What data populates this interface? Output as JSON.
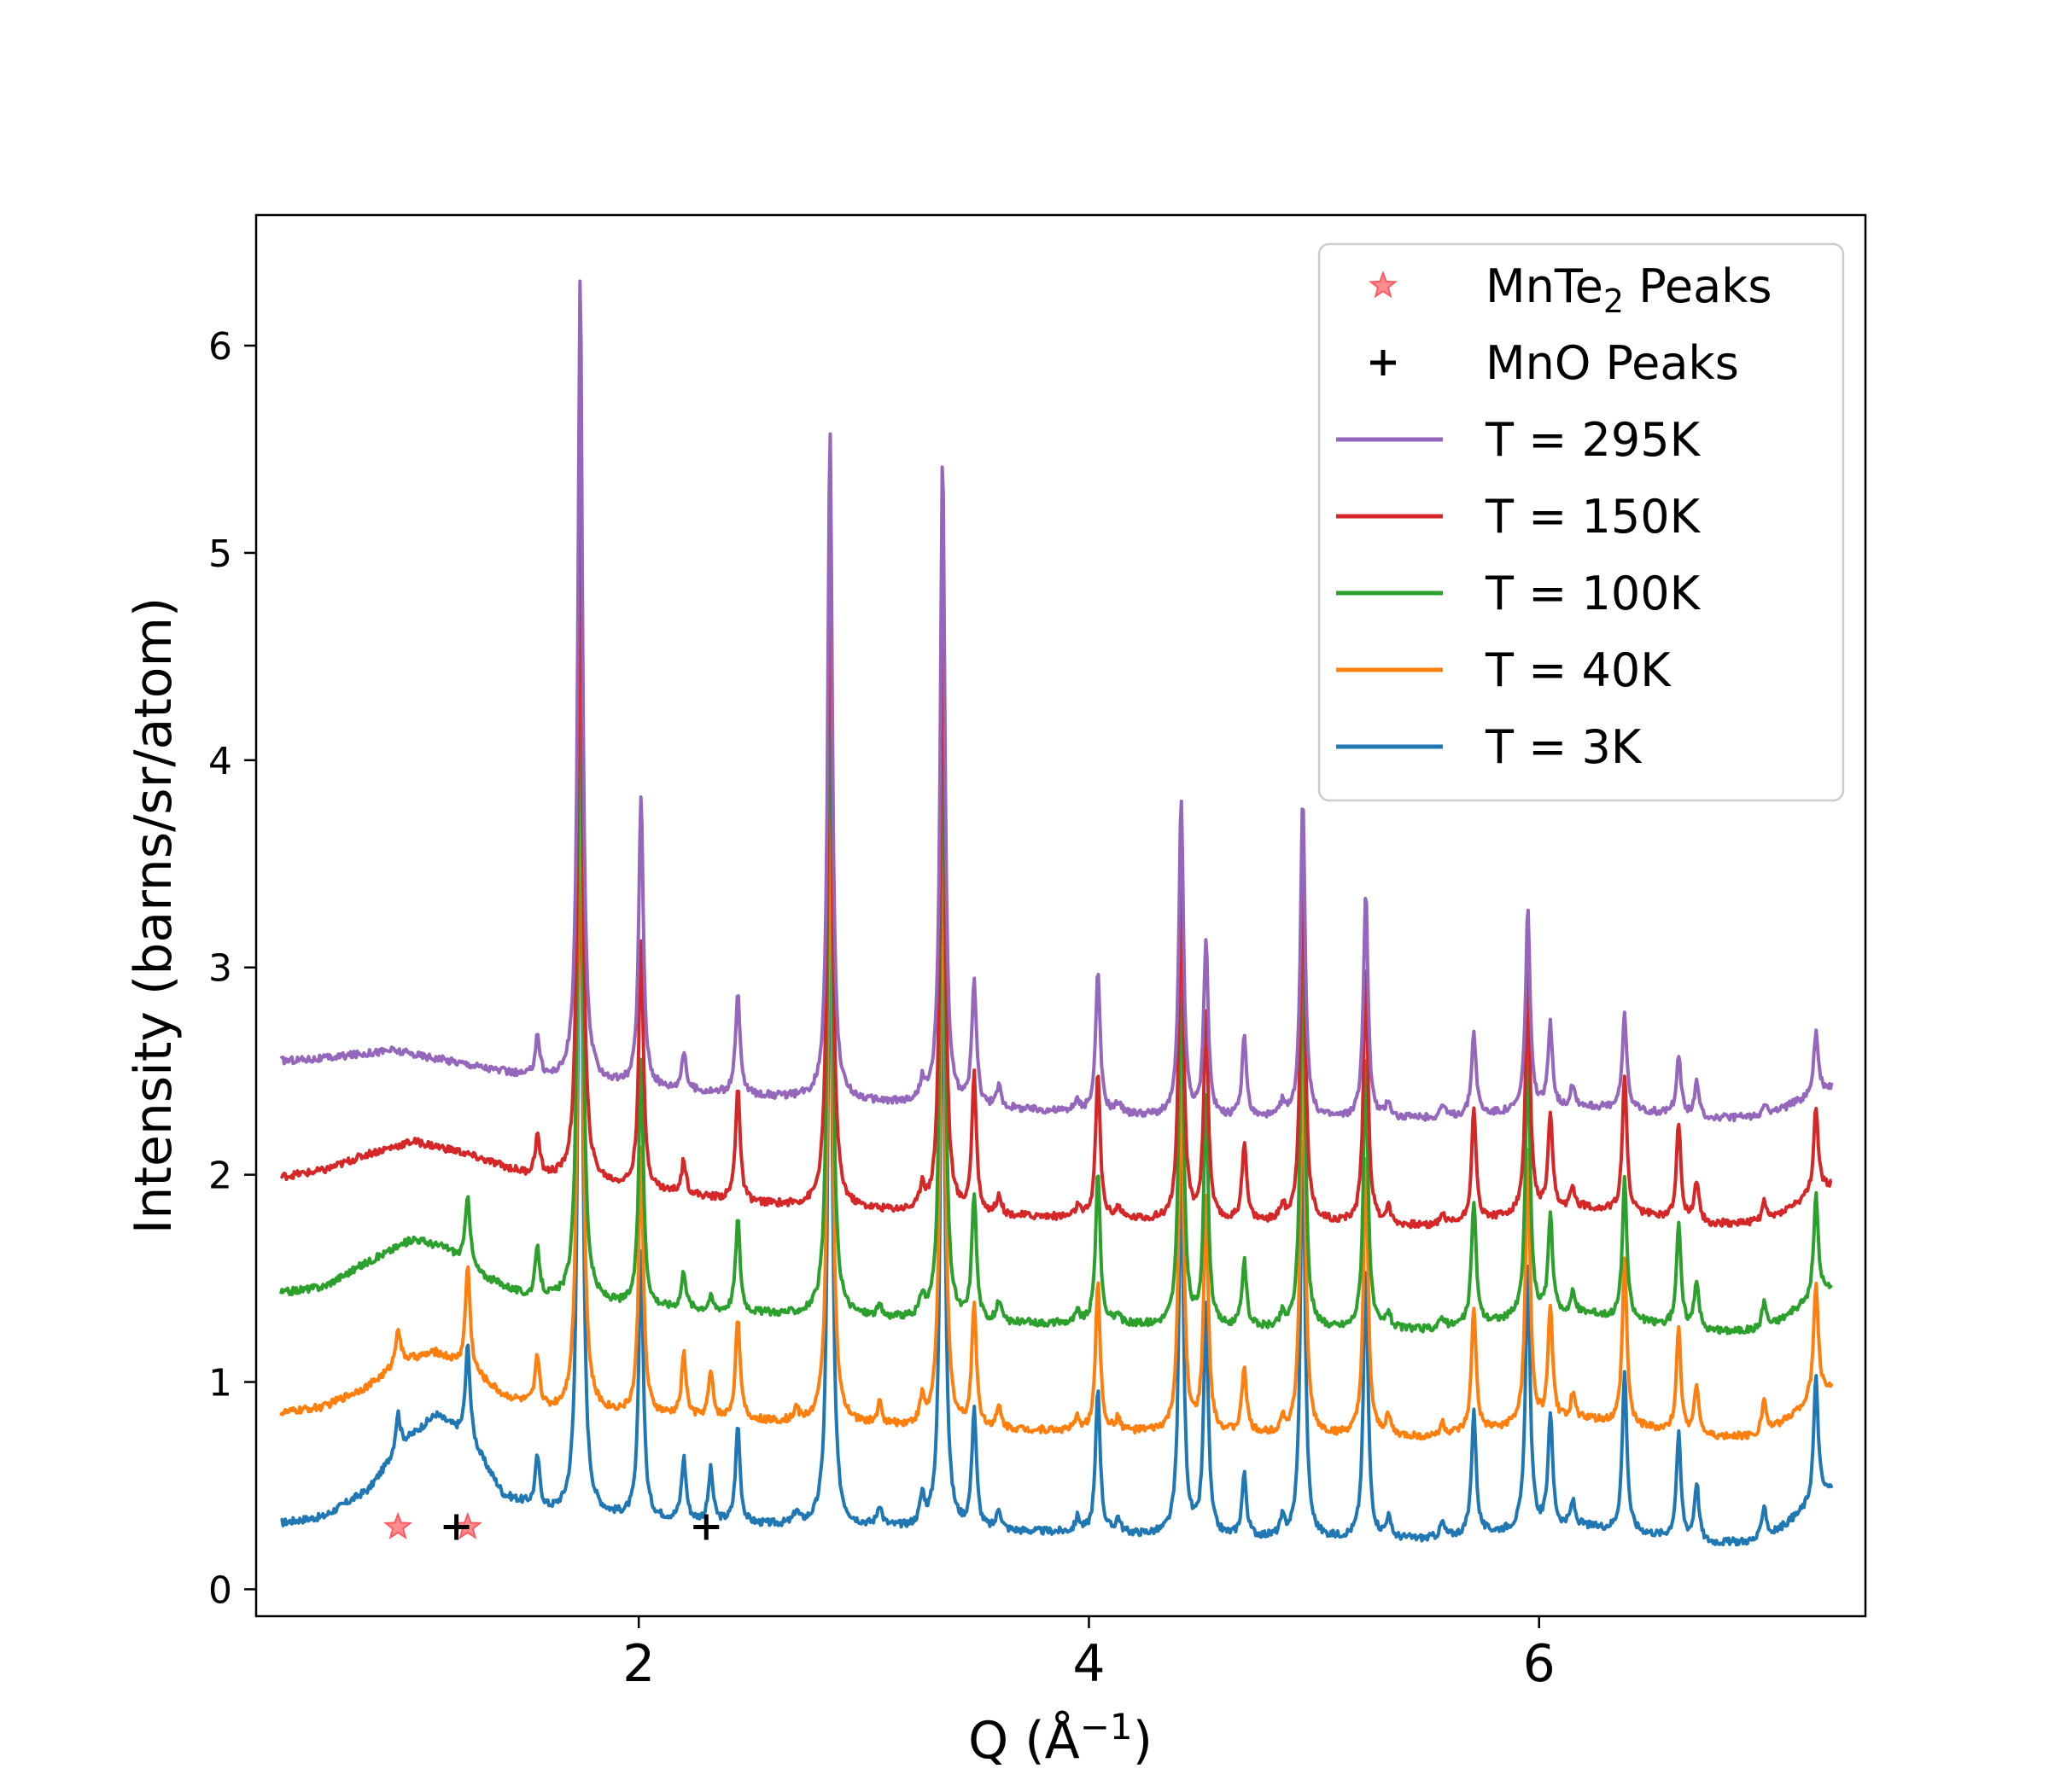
{
  "chart_data": {
    "type": "line",
    "title": "",
    "xlabel_main": "Q (Å",
    "xlabel_sup": "−1",
    "xlabel_close": ")",
    "ylabel": "Intensity (barns/sr/atom)",
    "xlim": [
      0.3,
      7.45
    ],
    "ylim": [
      -0.13,
      6.63
    ],
    "xticks": [
      2,
      4,
      6
    ],
    "xtick_labels": [
      "2",
      "4",
      "6"
    ],
    "yticks": [
      0,
      1,
      2,
      3,
      4,
      5,
      6
    ],
    "ytick_labels": [
      "0",
      "1",
      "2",
      "3",
      "4",
      "5",
      "6"
    ],
    "grid": false,
    "legend_position": "top-right",
    "x_range": [
      0.41,
      7.3
    ],
    "peak_width": 0.012,
    "peak_centers": [
      0.93,
      1.24,
      1.55,
      1.74,
      2.01,
      2.2,
      2.32,
      2.44,
      2.7,
      2.85,
      3.07,
      3.26,
      3.35,
      3.49,
      3.6,
      3.95,
      4.04,
      4.13,
      4.41,
      4.52,
      4.69,
      4.86,
      4.95,
      5.23,
      5.33,
      5.57,
      5.71,
      5.95,
      6.05,
      6.15,
      6.38,
      6.62,
      6.7,
      7.0,
      7.23
    ],
    "series": [
      {
        "name": "T = 295K",
        "color": "#9467bd",
        "baseline": [
          [
            0.41,
            2.55
          ],
          [
            0.6,
            2.56
          ],
          [
            0.9,
            2.6
          ],
          [
            1.2,
            2.54
          ],
          [
            1.5,
            2.47
          ],
          [
            2.0,
            2.42
          ],
          [
            2.5,
            2.38
          ],
          [
            3.0,
            2.35
          ],
          [
            3.5,
            2.32
          ],
          [
            4.0,
            2.3
          ],
          [
            4.5,
            2.27
          ],
          [
            5.0,
            2.27
          ],
          [
            5.5,
            2.27
          ],
          [
            5.9,
            2.3
          ],
          [
            6.2,
            2.33
          ],
          [
            6.5,
            2.3
          ],
          [
            6.75,
            2.27
          ],
          [
            7.0,
            2.28
          ],
          [
            7.3,
            2.42
          ]
        ],
        "peak_heights": [
          0,
          0,
          0.2,
          3.9,
          1.4,
          0.18,
          0,
          0.48,
          0,
          3.25,
          0,
          0.1,
          3.15,
          0.6,
          0.1,
          0.05,
          0.67,
          0.05,
          1.54,
          0.85,
          0.38,
          0.07,
          1.56,
          1.1,
          0.08,
          0.06,
          0.4,
          0.98,
          0.4,
          0.1,
          0.46,
          0.29,
          0.16,
          0.07,
          0.3
        ]
      },
      {
        "name": "T = 150K",
        "color": "#d62728",
        "baseline": [
          [
            0.41,
            1.99
          ],
          [
            0.6,
            2.02
          ],
          [
            0.8,
            2.1
          ],
          [
            1.0,
            2.16
          ],
          [
            1.2,
            2.11
          ],
          [
            1.5,
            2.0
          ],
          [
            2.0,
            1.93
          ],
          [
            2.5,
            1.86
          ],
          [
            3.0,
            1.83
          ],
          [
            3.5,
            1.8
          ],
          [
            4.0,
            1.79
          ],
          [
            4.5,
            1.77
          ],
          [
            5.0,
            1.77
          ],
          [
            5.5,
            1.75
          ],
          [
            5.9,
            1.8
          ],
          [
            6.2,
            1.84
          ],
          [
            6.5,
            1.8
          ],
          [
            6.75,
            1.76
          ],
          [
            7.0,
            1.77
          ],
          [
            7.3,
            1.95
          ]
        ],
        "peak_heights": [
          0,
          0,
          0.19,
          3.55,
          1.2,
          0.16,
          0,
          0.56,
          0,
          3.35,
          0,
          0.12,
          3.05,
          0.67,
          0.1,
          0.05,
          0.7,
          0.05,
          1.72,
          1.0,
          0.38,
          0.07,
          1.85,
          1.25,
          0.08,
          0.05,
          0.53,
          1.2,
          0.45,
          0.1,
          0.66,
          0.46,
          0.2,
          0.1,
          0.42
        ]
      },
      {
        "name": "T = 100K",
        "color": "#2ca02c",
        "baseline": [
          [
            0.41,
            1.43
          ],
          [
            0.6,
            1.46
          ],
          [
            0.8,
            1.58
          ],
          [
            1.0,
            1.69
          ],
          [
            1.15,
            1.64
          ],
          [
            1.3,
            1.51
          ],
          [
            1.5,
            1.41
          ],
          [
            2.0,
            1.36
          ],
          [
            2.5,
            1.33
          ],
          [
            3.0,
            1.31
          ],
          [
            3.5,
            1.28
          ],
          [
            4.0,
            1.28
          ],
          [
            4.5,
            1.26
          ],
          [
            5.0,
            1.25
          ],
          [
            5.5,
            1.25
          ],
          [
            5.9,
            1.3
          ],
          [
            6.2,
            1.33
          ],
          [
            6.5,
            1.28
          ],
          [
            6.75,
            1.24
          ],
          [
            7.0,
            1.25
          ],
          [
            7.3,
            1.45
          ]
        ],
        "peak_heights": [
          0,
          0.35,
          0.23,
          3.6,
          1.2,
          0.18,
          0.06,
          0.45,
          0,
          3.4,
          0.05,
          0.1,
          3.1,
          0.62,
          0.1,
          0.05,
          0.74,
          0.05,
          1.86,
          1.1,
          0.32,
          0.06,
          2.0,
          1.32,
          0.08,
          0.05,
          0.6,
          1.35,
          0.48,
          0.1,
          0.67,
          0.5,
          0.24,
          0.14,
          0.5
        ]
      },
      {
        "name": "T = 40K",
        "color": "#ff7f0e",
        "baseline": [
          [
            0.41,
            0.85
          ],
          [
            0.6,
            0.88
          ],
          [
            0.8,
            0.98
          ],
          [
            0.95,
            1.1
          ],
          [
            1.1,
            1.14
          ],
          [
            1.25,
            1.06
          ],
          [
            1.4,
            0.93
          ],
          [
            1.6,
            0.86
          ],
          [
            2.0,
            0.84
          ],
          [
            2.5,
            0.81
          ],
          [
            3.0,
            0.79
          ],
          [
            3.5,
            0.77
          ],
          [
            4.0,
            0.76
          ],
          [
            4.5,
            0.75
          ],
          [
            5.0,
            0.74
          ],
          [
            5.5,
            0.73
          ],
          [
            5.9,
            0.78
          ],
          [
            6.2,
            0.82
          ],
          [
            6.5,
            0.77
          ],
          [
            6.75,
            0.73
          ],
          [
            7.0,
            0.74
          ],
          [
            7.3,
            0.98
          ]
        ],
        "peak_heights": [
          0.18,
          0.5,
          0.24,
          3.7,
          1.3,
          0.3,
          0.22,
          0.5,
          0.06,
          3.2,
          0.1,
          0.12,
          3.0,
          0.6,
          0.1,
          0.06,
          0.72,
          0.06,
          1.86,
          1.12,
          0.32,
          0.07,
          2.05,
          1.35,
          0.1,
          0.06,
          0.6,
          1.35,
          0.55,
          0.12,
          0.8,
          0.5,
          0.25,
          0.18,
          0.56
        ]
      },
      {
        "name": "T = 3K",
        "color": "#1f77b4",
        "baseline": [
          [
            0.41,
            0.32
          ],
          [
            0.6,
            0.35
          ],
          [
            0.8,
            0.48
          ],
          [
            0.95,
            0.7
          ],
          [
            1.1,
            0.84
          ],
          [
            1.25,
            0.72
          ],
          [
            1.4,
            0.45
          ],
          [
            1.6,
            0.37
          ],
          [
            2.0,
            0.34
          ],
          [
            2.5,
            0.31
          ],
          [
            3.0,
            0.3
          ],
          [
            3.5,
            0.28
          ],
          [
            4.0,
            0.27
          ],
          [
            4.5,
            0.25
          ],
          [
            5.0,
            0.24
          ],
          [
            5.5,
            0.24
          ],
          [
            5.9,
            0.28
          ],
          [
            6.2,
            0.3
          ],
          [
            6.5,
            0.26
          ],
          [
            6.75,
            0.22
          ],
          [
            7.0,
            0.23
          ],
          [
            7.3,
            0.48
          ]
        ],
        "peak_heights": [
          0.18,
          0.45,
          0.24,
          3.8,
          1.3,
          0.3,
          0.25,
          0.47,
          0.06,
          3.2,
          0.1,
          0.14,
          3.0,
          0.58,
          0.1,
          0.07,
          0.7,
          0.07,
          1.84,
          1.1,
          0.3,
          0.08,
          2.0,
          1.32,
          0.1,
          0.07,
          0.6,
          1.3,
          0.55,
          0.12,
          0.78,
          0.5,
          0.28,
          0.18,
          0.6
        ]
      }
    ],
    "markers": [
      {
        "name": "MnTe₂ Peaks",
        "label_main": "MnTe",
        "label_sub": "2",
        "label_rest": " Peaks",
        "symbol": "star",
        "color": "#ff5a5f",
        "points": [
          [
            0.93,
            0.3
          ],
          [
            1.24,
            0.3
          ]
        ]
      },
      {
        "name": "MnO Peaks",
        "label_main": "MnO Peaks",
        "symbol": "plus",
        "color": "#000000",
        "points": [
          [
            1.19,
            0.3
          ],
          [
            2.3,
            0.3
          ]
        ]
      }
    ]
  }
}
